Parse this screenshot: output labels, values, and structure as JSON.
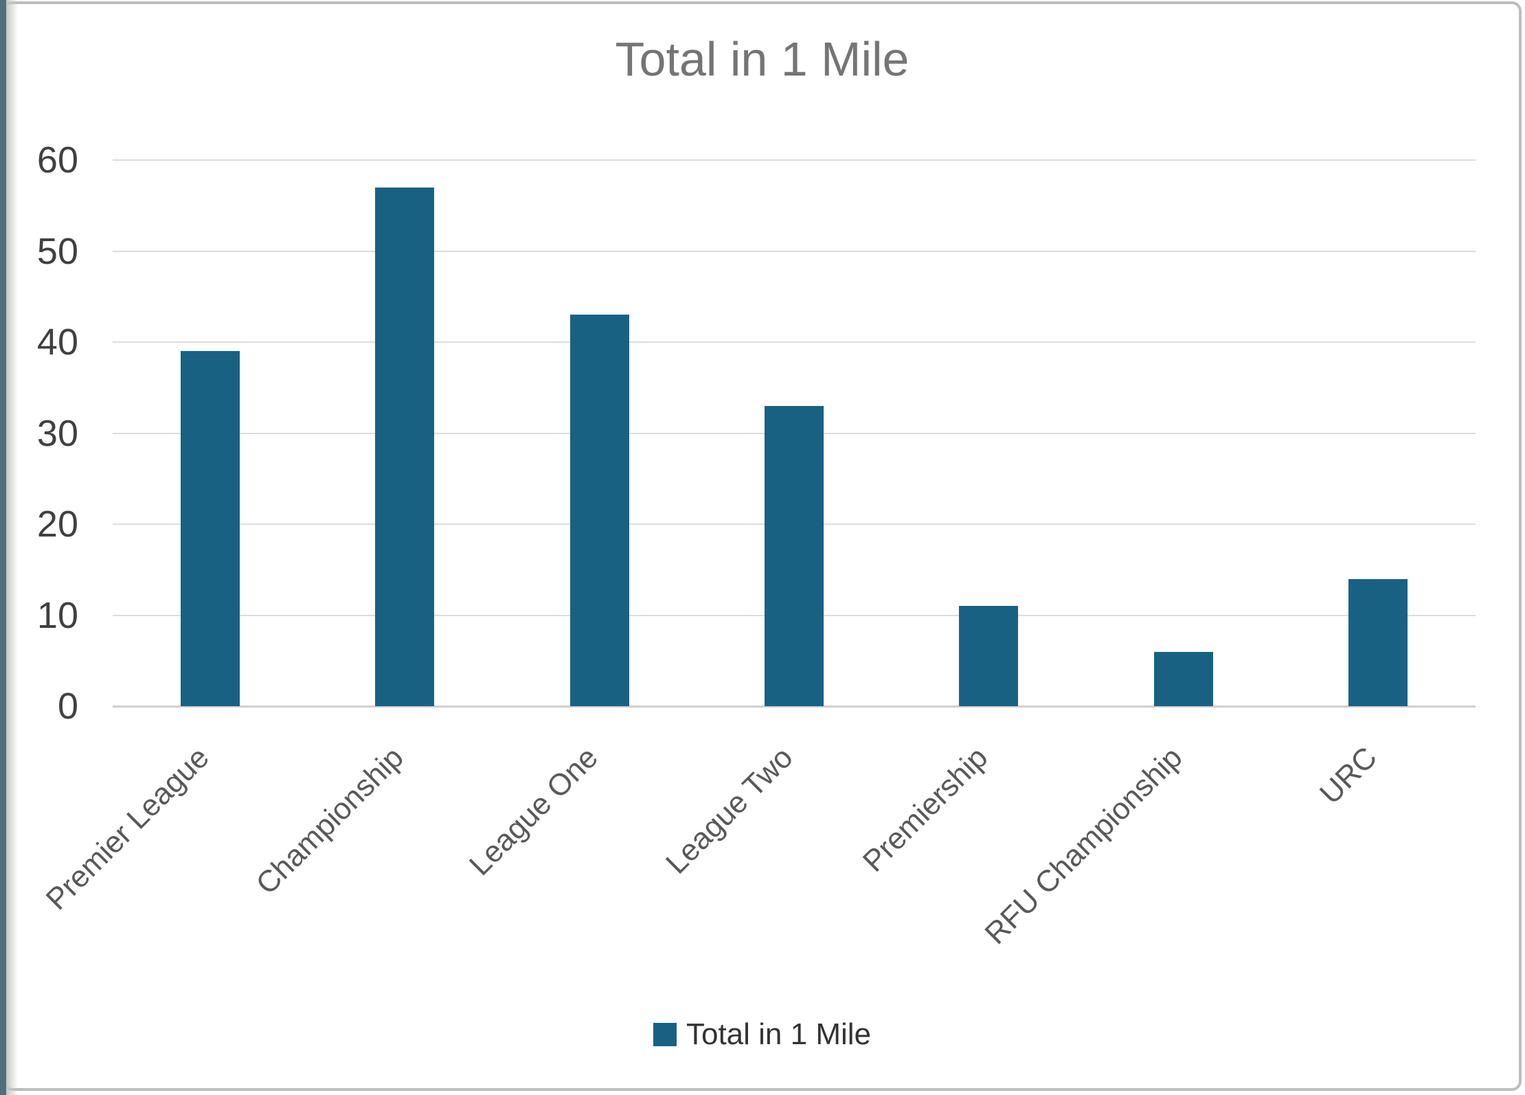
{
  "chart_data": {
    "type": "bar",
    "title": "Total in 1 Mile",
    "categories": [
      "Premier League",
      "Championship",
      "League One",
      "League Two",
      "Premiership",
      "RFU Championship",
      "URC"
    ],
    "values": [
      39,
      57,
      43,
      33,
      11,
      6,
      14
    ],
    "series_name": "Total in 1 Mile",
    "xlabel": "",
    "ylabel": "",
    "ylim": [
      0,
      60
    ],
    "yticks": [
      0,
      10,
      20,
      30,
      40,
      50,
      60
    ],
    "grid": "on",
    "bar_color": "#196183",
    "legend_position": "bottom",
    "legend_label": "Total in 1 Mile"
  }
}
